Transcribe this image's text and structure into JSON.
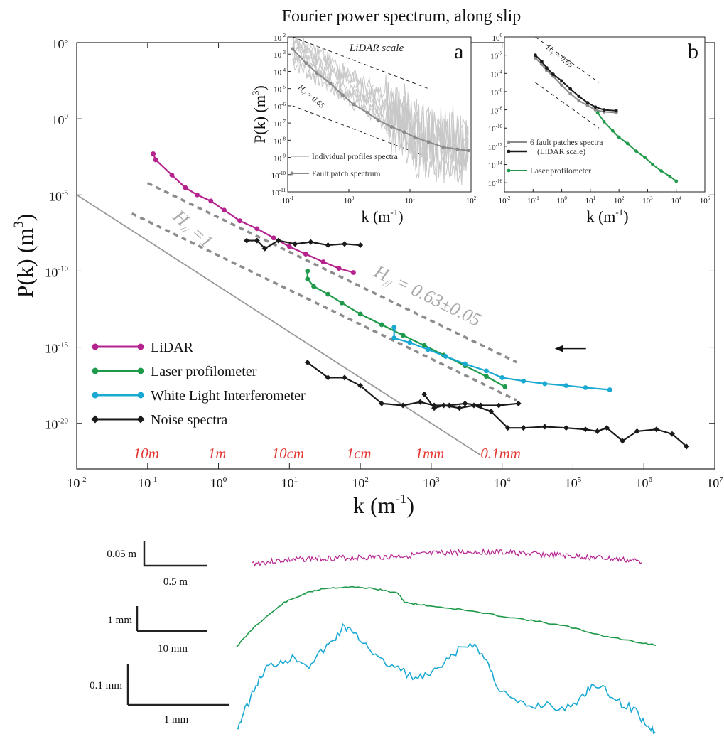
{
  "chart_data": {
    "type": "line",
    "title": "Fourier power spectrum, along slip",
    "xlabel": "k (m",
    "xlabel_sup": "-1",
    "xlabel_tail": ")",
    "ylabel": "P(k) (m",
    "ylabel_sup": "3",
    "ylabel_tail": ")",
    "x_scale": "log",
    "y_scale": "log",
    "xlim": [
      0.01,
      10000000
    ],
    "ylim": [
      1e-23,
      100000
    ],
    "x_ticks": [
      {
        "value": 0.01,
        "base": "10",
        "exp": "-2"
      },
      {
        "value": 0.1,
        "base": "10",
        "exp": "-1"
      },
      {
        "value": 1,
        "base": "10",
        "exp": "0"
      },
      {
        "value": 10,
        "base": "10",
        "exp": "1"
      },
      {
        "value": 100,
        "base": "10",
        "exp": "2"
      },
      {
        "value": 1000,
        "base": "10",
        "exp": "3"
      },
      {
        "value": 10000,
        "base": "10",
        "exp": "4"
      },
      {
        "value": 100000,
        "base": "10",
        "exp": "5"
      },
      {
        "value": 1000000,
        "base": "10",
        "exp": "6"
      },
      {
        "value": 10000000,
        "base": "10",
        "exp": "7"
      }
    ],
    "y_ticks": [
      {
        "value": 100000,
        "base": "10",
        "exp": "5"
      },
      {
        "value": 1,
        "base": "10",
        "exp": "0"
      },
      {
        "value": 1e-05,
        "base": "10",
        "exp": "-5"
      },
      {
        "value": 1e-10,
        "base": "10",
        "exp": "-10"
      },
      {
        "value": 1e-15,
        "base": "10",
        "exp": "-15"
      },
      {
        "value": 1e-20,
        "base": "10",
        "exp": "-20"
      }
    ],
    "scale_labels": [
      {
        "text": "10m",
        "k": 0.1
      },
      {
        "text": "1m",
        "k": 1
      },
      {
        "text": "10cm",
        "k": 10
      },
      {
        "text": "1cm",
        "k": 100
      },
      {
        "text": "1mm",
        "k": 1000
      },
      {
        "text": "0.1mm",
        "k": 10000
      }
    ],
    "series": [
      {
        "name": "LiDAR",
        "color": "#b5238f",
        "marker": "circle",
        "points": [
          [
            0.12,
            0.005
          ],
          [
            0.13,
            0.002
          ],
          [
            0.22,
            0.0002
          ],
          [
            0.34,
            3e-05
          ],
          [
            0.5,
            1e-05
          ],
          [
            0.78,
            4e-06
          ],
          [
            1.2,
            1e-06
          ],
          [
            2,
            2e-07
          ],
          [
            3.5,
            6e-08
          ],
          [
            6,
            1.5e-08
          ],
          [
            10,
            4e-09
          ],
          [
            17,
            1.3e-09
          ],
          [
            30,
            4e-10
          ],
          [
            50,
            1.5e-10
          ],
          [
            80,
            8e-11
          ]
        ]
      },
      {
        "name": "Laser profilometer",
        "color": "#1f9a4a",
        "marker": "circle",
        "points": [
          [
            18,
            1e-10
          ],
          [
            18,
            3e-11
          ],
          [
            22,
            1e-11
          ],
          [
            35,
            3e-12
          ],
          [
            55,
            8e-13
          ],
          [
            100,
            1.5e-13
          ],
          [
            200,
            3e-14
          ],
          [
            400,
            6e-15
          ],
          [
            800,
            1.3e-15
          ],
          [
            1500,
            3e-16
          ],
          [
            3000,
            6e-17
          ],
          [
            6000,
            1.2e-17
          ],
          [
            11000,
            2.5e-18
          ]
        ]
      },
      {
        "name": "White Light Interferometer",
        "color": "#19a9d2",
        "marker": "circle",
        "points": [
          [
            300,
            2e-14
          ],
          [
            300,
            4e-15
          ],
          [
            500,
            2e-15
          ],
          [
            900,
            7e-16
          ],
          [
            1600,
            2.5e-16
          ],
          [
            3000,
            8e-17
          ],
          [
            6000,
            2.8e-17
          ],
          [
            10000,
            1e-17
          ],
          [
            20000,
            6e-18
          ],
          [
            40000,
            4e-18
          ],
          [
            80000,
            3e-18
          ],
          [
            150000,
            2.2e-18
          ],
          [
            330000,
            1.6e-18
          ]
        ]
      },
      {
        "name": "Noise spectra",
        "color": "#1a1a1a",
        "marker": "diamond",
        "points": [
          [
            2.5,
            1e-08
          ],
          [
            3.5,
            1e-08
          ],
          [
            4.5,
            3e-09
          ],
          [
            7,
            1e-08
          ],
          [
            12,
            6e-09
          ],
          [
            20,
            8e-09
          ],
          [
            35,
            5e-09
          ],
          [
            60,
            6e-09
          ],
          [
            100,
            5e-09
          ]
        ]
      },
      {
        "name": "",
        "color": "#1a1a1a",
        "marker": "diamond",
        "points": [
          [
            18,
            1e-16
          ],
          [
            35,
            1e-17
          ],
          [
            60,
            1e-17
          ],
          [
            100,
            3e-18
          ],
          [
            200,
            2e-19
          ],
          [
            400,
            1.5e-19
          ],
          [
            700,
            2.5e-19
          ],
          [
            1100,
            1.5e-19
          ],
          [
            1800,
            1.5e-19
          ],
          [
            3000,
            2e-19
          ],
          [
            5000,
            1.5e-19
          ],
          [
            9000,
            1.5e-19
          ],
          [
            17000,
            2e-19
          ]
        ]
      },
      {
        "name": "",
        "color": "#1a1a1a",
        "marker": "diamond",
        "points": [
          [
            800,
            8e-19
          ],
          [
            1100,
            1e-19
          ],
          [
            1500,
            1.5e-19
          ],
          [
            2500,
            1e-19
          ],
          [
            4000,
            1.5e-19
          ],
          [
            7000,
            6e-20
          ],
          [
            12000,
            5e-21
          ],
          [
            20000,
            5e-21
          ],
          [
            40000,
            6e-21
          ],
          [
            80000,
            5e-21
          ],
          [
            150000,
            4e-21
          ],
          [
            220000,
            3e-21
          ],
          [
            300000,
            5e-21
          ],
          [
            500000,
            7e-22
          ],
          [
            800000,
            3e-21
          ],
          [
            1500000,
            4e-21
          ],
          [
            2500000,
            2e-21
          ],
          [
            4000000,
            3e-22
          ]
        ]
      }
    ],
    "reference_lines": [
      {
        "label": "H",
        "label_sub": "//",
        "label_tail": " =1",
        "slope": -3,
        "anchor": [
          0.01,
          1e-05
        ],
        "color": "#9a9a9a",
        "style": "solid"
      },
      {
        "label": "H",
        "label_sub": "//",
        "label_tail": " = 0.63±0.05",
        "slope": -2.26,
        "anchor": [
          0.1,
          6e-05
        ],
        "color": "#8c8c8c",
        "style": "dashed"
      },
      {
        "label": "",
        "label_sub": "",
        "label_tail": "",
        "slope": -2.26,
        "anchor": [
          0.06,
          6e-07
        ],
        "color": "#8c8c8c",
        "style": "dashed"
      }
    ],
    "arrow_at": {
      "k": 40000,
      "P": 1e-15
    },
    "legend_placement": "left, lower-middle",
    "insets": [
      {
        "label": "a",
        "annotation": "LiDAR scale",
        "xlabel": "k (m",
        "xlabel_sup": "-1",
        "xlabel_tail": ")",
        "ylabel": "P(k) (m",
        "ylabel_sup": "3",
        "ylabel_tail": ")",
        "xlim": [
          0.1,
          100
        ],
        "ylim": [
          1e-11,
          0.01
        ],
        "x_ticks": [
          {
            "value": 0.1,
            "base": "10",
            "exp": "-1"
          },
          {
            "value": 1,
            "base": "10",
            "exp": "0"
          },
          {
            "value": 10,
            "base": "10",
            "exp": "1"
          },
          {
            "value": 100,
            "base": "10",
            "exp": "2"
          }
        ],
        "y_ticks": [
          {
            "value": 0.01,
            "base": "10",
            "exp": "-2"
          },
          {
            "value": 0.001,
            "base": "10",
            "exp": "-3"
          },
          {
            "value": 0.0001,
            "base": "10",
            "exp": "-4"
          },
          {
            "value": 1e-05,
            "base": "10",
            "exp": "-5"
          },
          {
            "value": 1e-06,
            "base": "10",
            "exp": "-6"
          },
          {
            "value": 1e-07,
            "base": "10",
            "exp": "-7"
          },
          {
            "value": 1e-08,
            "base": "10",
            "exp": "-8"
          },
          {
            "value": 1e-09,
            "base": "10",
            "exp": "-9"
          },
          {
            "value": 1e-10,
            "base": "10",
            "exp": "-10"
          },
          {
            "value": 1e-11,
            "base": "10",
            "exp": "-11"
          }
        ],
        "slope_label": "H",
        "slope_label_sub": "//",
        "slope_label_tail": " = 0.65",
        "legend": [
          {
            "name": "Individual profiles spectra",
            "color": "#c8c8c8"
          },
          {
            "name": "Fault patch spectrum",
            "color": "#8a8a8a"
          }
        ],
        "series": [
          {
            "name": "Fault patch spectrum",
            "color": "#8a8a8a",
            "points": [
              [
                0.12,
                0.002
              ],
              [
                0.2,
                0.0003
              ],
              [
                0.3,
                8e-05
              ],
              [
                0.5,
                2e-05
              ],
              [
                0.8,
                4e-06
              ],
              [
                1.2,
                1.2e-06
              ],
              [
                2,
                4e-07
              ],
              [
                3,
                1.5e-07
              ],
              [
                5,
                6e-08
              ],
              [
                8,
                3e-08
              ],
              [
                12,
                1.5e-08
              ],
              [
                20,
                8e-09
              ],
              [
                35,
                4e-09
              ],
              [
                60,
                3e-09
              ],
              [
                90,
                2.5e-09
              ]
            ]
          }
        ]
      },
      {
        "label": "b",
        "xlabel": "k (m",
        "xlabel_sup": "-1",
        "xlabel_tail": ")",
        "xlim": [
          0.01,
          100000
        ],
        "ylim": [
          1e-17,
          1
        ],
        "x_ticks": [
          {
            "value": 0.01,
            "base": "10",
            "exp": "-2"
          },
          {
            "value": 0.1,
            "base": "10",
            "exp": "-1"
          },
          {
            "value": 1,
            "base": "10",
            "exp": "0"
          },
          {
            "value": 10,
            "base": "10",
            "exp": "1"
          },
          {
            "value": 100,
            "base": "10",
            "exp": "2"
          },
          {
            "value": 1000,
            "base": "10",
            "exp": "3"
          },
          {
            "value": 10000,
            "base": "10",
            "exp": "4"
          },
          {
            "value": 100000,
            "base": "10",
            "exp": "5"
          }
        ],
        "y_ticks": [
          {
            "value": 1,
            "base": "10",
            "exp": "0"
          },
          {
            "value": 0.01,
            "base": "10",
            "exp": "-2"
          },
          {
            "value": 0.0001,
            "base": "10",
            "exp": "-4"
          },
          {
            "value": 1e-06,
            "base": "10",
            "exp": "-6"
          },
          {
            "value": 1e-08,
            "base": "10",
            "exp": "-8"
          },
          {
            "value": 1e-10,
            "base": "10",
            "exp": "-10"
          },
          {
            "value": 1e-12,
            "base": "10",
            "exp": "-12"
          },
          {
            "value": 1e-14,
            "base": "10",
            "exp": "-14"
          },
          {
            "value": 1e-16,
            "base": "10",
            "exp": "-16"
          }
        ],
        "slope_label": "H",
        "slope_label_sub": "//",
        "slope_label_tail": " = 0.65",
        "legend": [
          {
            "name": "6 fault patches spectra",
            "name2": "(LiDAR scale)",
            "color": "#8a8a8a",
            "color2": "#1a1a1a"
          },
          {
            "name": "Laser profilometer",
            "color": "#1f9a4a"
          }
        ],
        "series": [
          {
            "name": "6 fault patches spectra",
            "color": "#8a8a8a",
            "points": [
              [
                0.12,
                0.005
              ],
              [
                0.2,
                0.001
              ],
              [
                0.3,
                0.0002
              ],
              [
                0.5,
                5e-05
              ],
              [
                1,
                5e-06
              ],
              [
                2,
                6e-07
              ],
              [
                4,
                1e-07
              ],
              [
                8,
                3e-08
              ],
              [
                15,
                1e-08
              ],
              [
                30,
                6e-09
              ],
              [
                80,
                5e-09
              ]
            ]
          },
          {
            "name": "(LiDAR scale)",
            "color": "#1a1a1a",
            "points": [
              [
                0.12,
                0.01
              ],
              [
                0.2,
                0.002
              ],
              [
                0.3,
                0.0004
              ],
              [
                0.5,
                8e-05
              ],
              [
                1,
                1.5e-05
              ],
              [
                2,
                2e-06
              ],
              [
                4,
                3e-07
              ],
              [
                8,
                6e-08
              ],
              [
                15,
                2e-08
              ],
              [
                30,
                1e-08
              ],
              [
                80,
                8e-09
              ]
            ]
          },
          {
            "name": "Laser profilometer",
            "color": "#1f9a4a",
            "points": [
              [
                18,
                5e-09
              ],
              [
                30,
                5e-10
              ],
              [
                60,
                5e-11
              ],
              [
                100,
                1e-11
              ],
              [
                200,
                2e-12
              ],
              [
                400,
                3e-13
              ],
              [
                800,
                6e-14
              ],
              [
                1500,
                1e-14
              ],
              [
                3000,
                2e-15
              ],
              [
                6000,
                5e-16
              ],
              [
                10000,
                1.5e-16
              ]
            ]
          }
        ]
      }
    ],
    "profiles": [
      {
        "color": "#b5238f",
        "scale_v": "0.05 m",
        "scale_h": "0.5 m"
      },
      {
        "color": "#1f9a4a",
        "scale_v": "1 mm",
        "scale_h": "10 mm"
      },
      {
        "color": "#19a9d2",
        "scale_v": "0.1 mm",
        "scale_h": "1 mm"
      }
    ]
  }
}
